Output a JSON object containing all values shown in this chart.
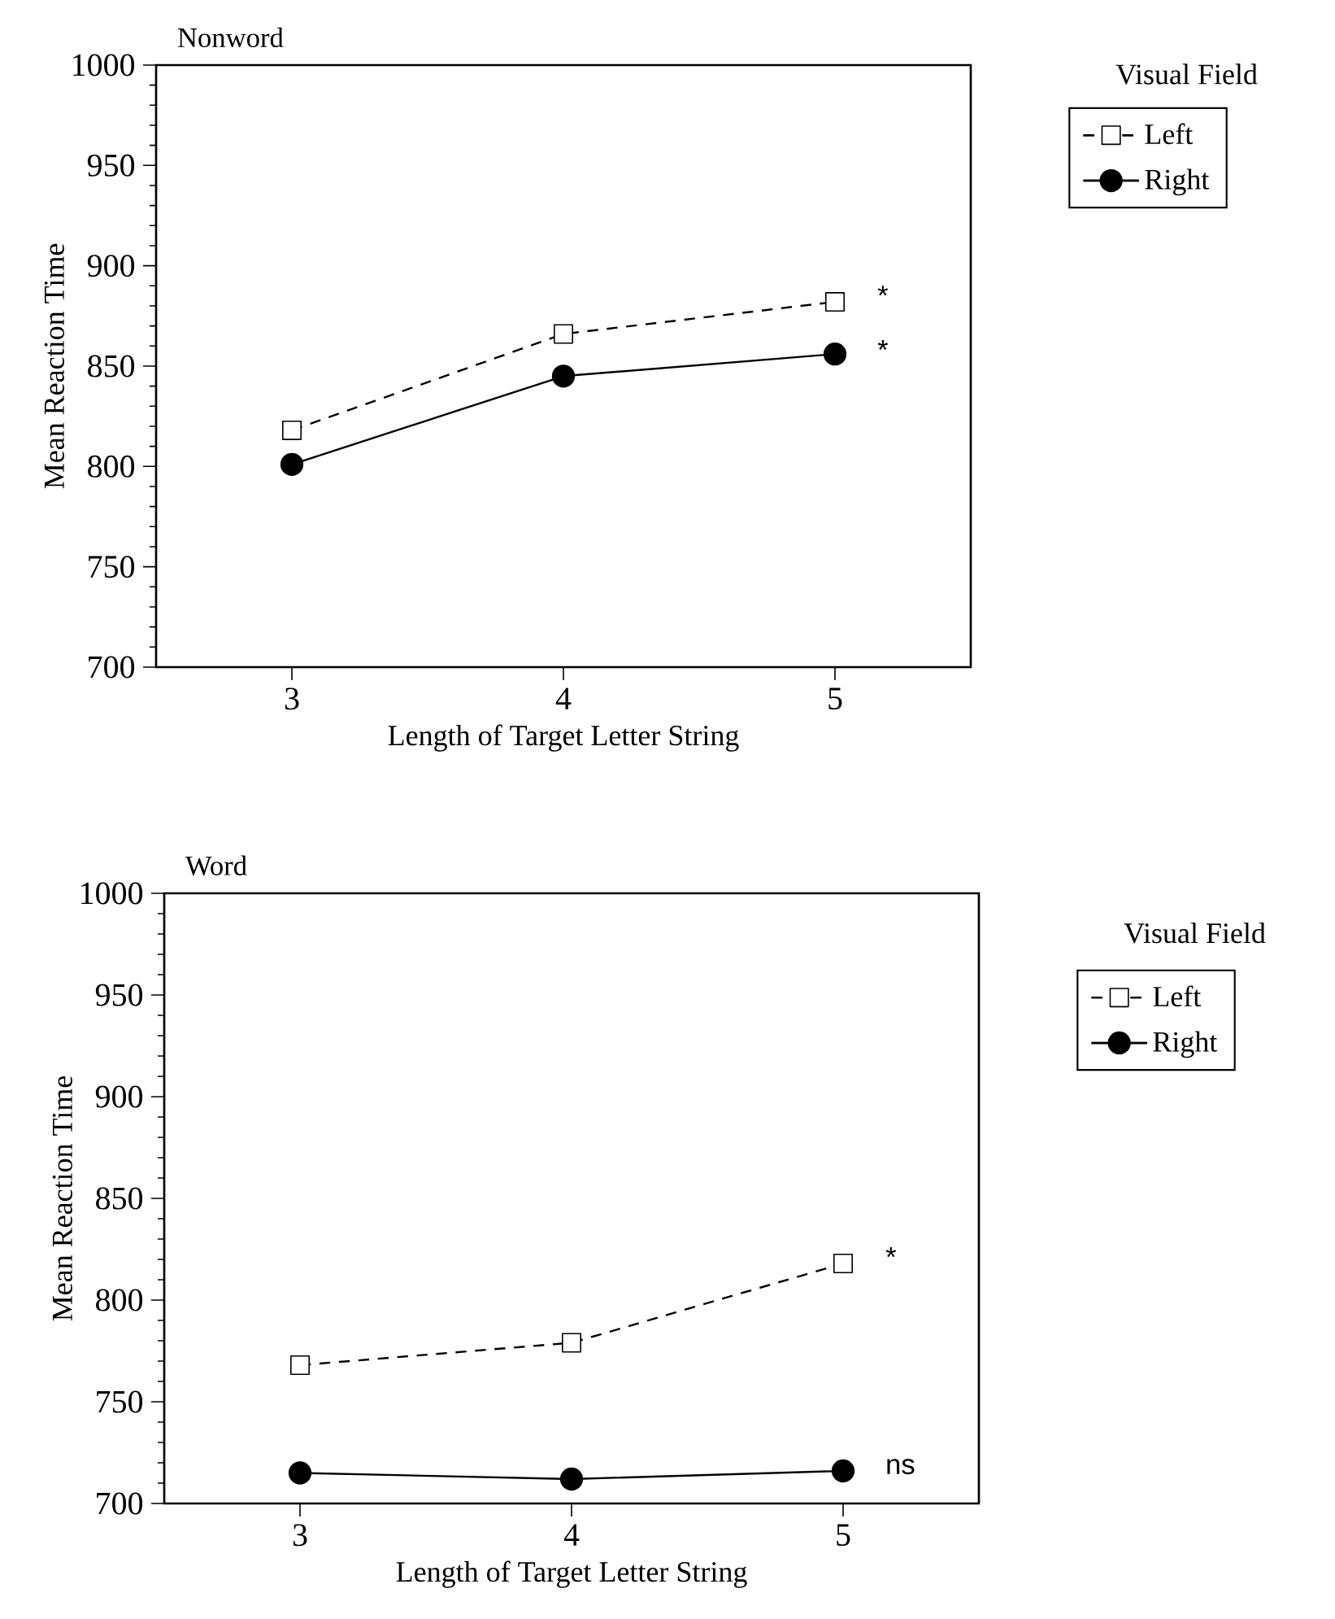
{
  "chart_data": [
    {
      "type": "line",
      "title": "Nonword",
      "xlabel": "Length of Target Letter String",
      "ylabel": "Mean Reaction Time",
      "legend_title": "Visual Field",
      "x": [
        3,
        4,
        5
      ],
      "xlim": [
        2.5,
        5.5
      ],
      "ylim": [
        700,
        1000
      ],
      "xticks": [
        3,
        4,
        5
      ],
      "yticks": [
        700,
        750,
        800,
        850,
        900,
        950,
        1000
      ],
      "legend": "right",
      "series": [
        {
          "name": "Left",
          "color": "#000000",
          "values": [
            818,
            866,
            882
          ],
          "marker": "square",
          "line_style": "dashed"
        },
        {
          "name": "Right",
          "color": "#000000",
          "values": [
            801,
            845,
            856
          ],
          "marker": "circle",
          "line_style": "solid"
        }
      ],
      "annotations": [
        "*",
        "*"
      ]
    },
    {
      "type": "line",
      "title": "Word",
      "xlabel": "Length of Target Letter String",
      "ylabel": "Mean Reaction Time",
      "legend_title": "Visual Field",
      "x": [
        3,
        4,
        5
      ],
      "xlim": [
        2.5,
        5.5
      ],
      "ylim": [
        700,
        1000
      ],
      "xticks": [
        3,
        4,
        5
      ],
      "yticks": [
        700,
        750,
        800,
        850,
        900,
        950,
        1000
      ],
      "legend": "right",
      "series": [
        {
          "name": "Left",
          "color": "#000000",
          "values": [
            768,
            779,
            818
          ],
          "marker": "square",
          "line_style": "dashed"
        },
        {
          "name": "Right",
          "color": "#000000",
          "values": [
            715,
            712,
            716
          ],
          "marker": "circle",
          "line_style": "solid"
        }
      ],
      "annotations": [
        "*",
        "ns"
      ]
    }
  ]
}
